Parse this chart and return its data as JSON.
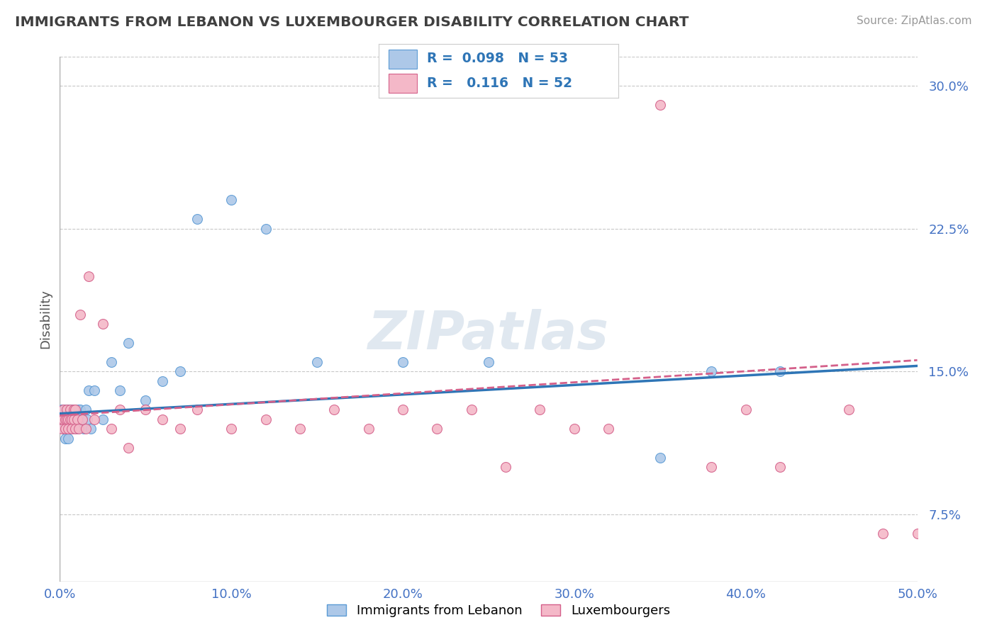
{
  "title": "IMMIGRANTS FROM LEBANON VS LUXEMBOURGER DISABILITY CORRELATION CHART",
  "source": "Source: ZipAtlas.com",
  "ylabel": "Disability",
  "xlim": [
    0.0,
    0.5
  ],
  "ylim": [
    0.04,
    0.315
  ],
  "yticks": [
    0.075,
    0.15,
    0.225,
    0.3
  ],
  "ytick_labels": [
    "7.5%",
    "15.0%",
    "22.5%",
    "30.0%"
  ],
  "xticks": [
    0.0,
    0.1,
    0.2,
    0.3,
    0.4,
    0.5
  ],
  "xtick_labels": [
    "0.0%",
    "10.0%",
    "20.0%",
    "30.0%",
    "40.0%",
    "50.0%"
  ],
  "series1_name": "Immigrants from Lebanon",
  "series1_color": "#adc8e8",
  "series1_edge_color": "#5b9bd5",
  "series1_R": "0.098",
  "series1_N": "53",
  "series2_name": "Luxembourgers",
  "series2_color": "#f4b8c8",
  "series2_edge_color": "#d4608a",
  "series2_R": "0.116",
  "series2_N": "52",
  "trend1_color": "#2e75b6",
  "trend2_color": "#d4608a",
  "background_color": "#ffffff",
  "grid_color": "#c8c8c8",
  "title_color": "#404040",
  "axis_label_color": "#4472c4",
  "watermark": "ZIPatlas",
  "series1_x": [
    0.001,
    0.001,
    0.002,
    0.002,
    0.002,
    0.003,
    0.003,
    0.003,
    0.004,
    0.004,
    0.004,
    0.005,
    0.005,
    0.005,
    0.005,
    0.006,
    0.006,
    0.006,
    0.007,
    0.007,
    0.007,
    0.008,
    0.008,
    0.009,
    0.009,
    0.01,
    0.01,
    0.011,
    0.011,
    0.012,
    0.013,
    0.014,
    0.015,
    0.016,
    0.017,
    0.018,
    0.02,
    0.025,
    0.03,
    0.035,
    0.04,
    0.05,
    0.06,
    0.07,
    0.08,
    0.1,
    0.12,
    0.15,
    0.2,
    0.25,
    0.35,
    0.38,
    0.42
  ],
  "series1_y": [
    0.13,
    0.125,
    0.12,
    0.13,
    0.125,
    0.115,
    0.13,
    0.125,
    0.12,
    0.13,
    0.125,
    0.115,
    0.13,
    0.125,
    0.12,
    0.13,
    0.125,
    0.12,
    0.13,
    0.125,
    0.12,
    0.13,
    0.125,
    0.12,
    0.13,
    0.125,
    0.12,
    0.13,
    0.125,
    0.13,
    0.125,
    0.12,
    0.13,
    0.125,
    0.14,
    0.12,
    0.14,
    0.125,
    0.155,
    0.14,
    0.165,
    0.135,
    0.145,
    0.15,
    0.23,
    0.24,
    0.225,
    0.155,
    0.155,
    0.155,
    0.105,
    0.15,
    0.15
  ],
  "series2_x": [
    0.001,
    0.001,
    0.002,
    0.002,
    0.003,
    0.003,
    0.004,
    0.004,
    0.005,
    0.005,
    0.006,
    0.006,
    0.007,
    0.007,
    0.008,
    0.008,
    0.009,
    0.009,
    0.01,
    0.011,
    0.012,
    0.013,
    0.015,
    0.017,
    0.02,
    0.025,
    0.03,
    0.035,
    0.04,
    0.05,
    0.06,
    0.07,
    0.08,
    0.1,
    0.12,
    0.14,
    0.16,
    0.18,
    0.2,
    0.22,
    0.24,
    0.26,
    0.28,
    0.3,
    0.32,
    0.35,
    0.38,
    0.4,
    0.42,
    0.46,
    0.48,
    0.5
  ],
  "series2_y": [
    0.125,
    0.12,
    0.13,
    0.125,
    0.125,
    0.12,
    0.13,
    0.125,
    0.125,
    0.12,
    0.13,
    0.125,
    0.125,
    0.12,
    0.13,
    0.125,
    0.12,
    0.13,
    0.125,
    0.12,
    0.18,
    0.125,
    0.12,
    0.2,
    0.125,
    0.175,
    0.12,
    0.13,
    0.11,
    0.13,
    0.125,
    0.12,
    0.13,
    0.12,
    0.125,
    0.12,
    0.13,
    0.12,
    0.13,
    0.12,
    0.13,
    0.1,
    0.13,
    0.12,
    0.12,
    0.29,
    0.1,
    0.13,
    0.1,
    0.13,
    0.065,
    0.065
  ],
  "trend1_x0": 0.0,
  "trend1_y0": 0.128,
  "trend1_x1": 0.5,
  "trend1_y1": 0.153,
  "trend2_x0": 0.0,
  "trend2_y0": 0.127,
  "trend2_x1": 0.5,
  "trend2_y1": 0.156
}
